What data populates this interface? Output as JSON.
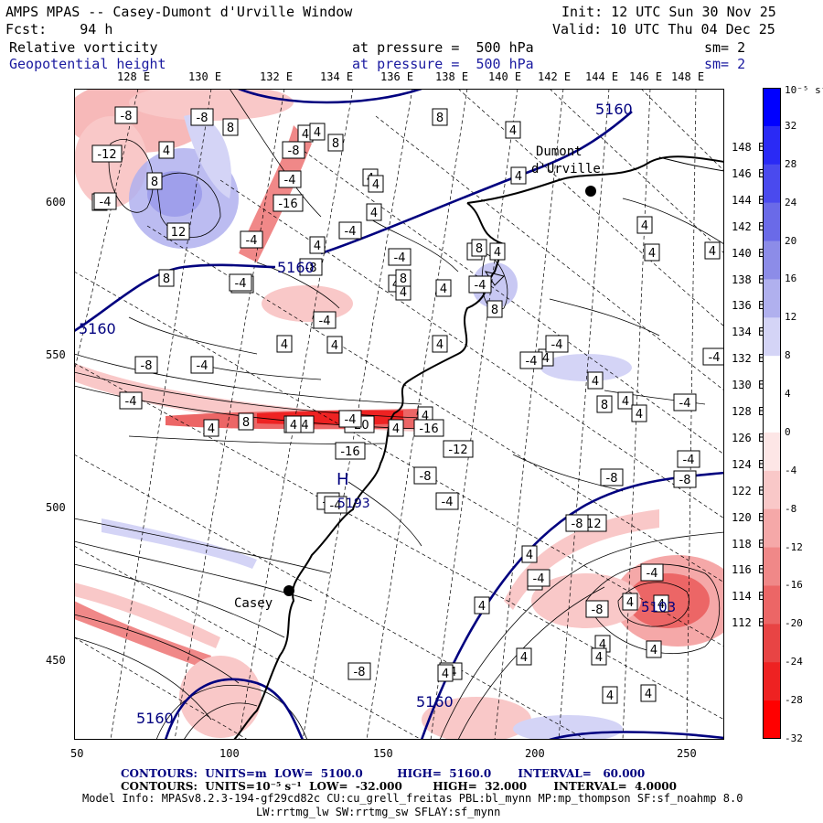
{
  "header": {
    "title": "AMPS MPAS -- Casey-Dumont d'Urville Window",
    "fcst": "Fcst:    94 h",
    "init": "Init: 12 UTC Sun 30 Nov 25",
    "valid": "Valid: 10 UTC Thu 04 Dec 25",
    "field1_name": "Relative vorticity",
    "field1_level": "at pressure =  500 hPa",
    "field1_sm": "sm= 2",
    "field2_name": "Geopotential height",
    "field2_level": "at pressure =  500 hPa",
    "field2_sm": "sm= 2"
  },
  "axes": {
    "top_lon_labels": [
      "128 E",
      "130 E",
      "132 E",
      "134 E",
      "136 E",
      "138 E",
      "140 E",
      "142 E",
      "144 E",
      "146 E",
      "148 E"
    ],
    "right_lat_labels": [
      "148 E",
      "146 E",
      "144 E",
      "142 E",
      "140 E",
      "138 E",
      "136 E",
      "134 E",
      "132 E",
      "130 E",
      "128 E",
      "126 E",
      "124 E",
      "122 E",
      "120 E",
      "118 E",
      "116 E",
      "114 E",
      "112 E"
    ],
    "left_y_labels": [
      "600",
      "550",
      "500",
      "450"
    ],
    "bottom_x_labels": [
      "50",
      "100",
      "150",
      "200",
      "250"
    ]
  },
  "colorbar": {
    "unit": "10⁻⁵ s⁻¹",
    "labels": [
      "32",
      "28",
      "24",
      "20",
      "16",
      "12",
      "8",
      "4",
      "0",
      "-4",
      "-8",
      "-12",
      "-16",
      "-20",
      "-24",
      "-28",
      "-32"
    ],
    "colors": [
      "#0000ff",
      "#2a2af5",
      "#4a4aee",
      "#6a6ae8",
      "#8c8ce8",
      "#b0b0ee",
      "#d4d4f6",
      "#ffffff",
      "#ffffff",
      "#fde6e6",
      "#f9c8c8",
      "#f5a8a8",
      "#f08888",
      "#ec6666",
      "#e84444",
      "#ee2222",
      "#ff0000"
    ]
  },
  "places": {
    "dumont": "Dumont d'Urville",
    "casey": "Casey"
  },
  "contours": {
    "height_labels": [
      "5160",
      "5160",
      "5160",
      "5160",
      "5160",
      "5160"
    ],
    "low_value": "5103",
    "high_marker": "H",
    "high_value": "5193",
    "vort_labels": [
      "-8",
      "-8",
      "8",
      "-12",
      "4",
      "8",
      "4",
      "-4",
      "-8",
      "4",
      "-4",
      "-16",
      "4",
      "8",
      "12",
      "-4",
      "8",
      "-4",
      "4",
      "4",
      "-4",
      "-8",
      "4",
      "4",
      "8",
      "-4",
      "4",
      "4",
      "4",
      "8",
      "-4",
      "-4",
      "8",
      "4",
      "-4",
      "-4",
      "-8",
      "-4",
      "-24",
      "-20",
      "-4",
      "4",
      "8",
      "4",
      "4",
      "4",
      "4",
      "4",
      "4",
      "4",
      "8",
      "4",
      "4",
      "4",
      "4",
      "4",
      "4",
      "-4",
      "-4",
      "4",
      "8",
      "4",
      "-4",
      "-4",
      "4",
      "-8",
      "-8",
      "-4",
      "-16",
      "-16",
      "-8",
      "-4",
      "-4",
      "-8",
      "-12",
      "-12",
      "-8",
      "4",
      "4",
      "4",
      "-4",
      "-8",
      "-4",
      "4",
      "4",
      "4",
      "4",
      "4",
      "-4",
      "-8",
      "4",
      "4",
      "4",
      "4"
    ]
  },
  "footer": {
    "line1_label": "CONTOURS:  UNITS=m  LOW=  5100.0         HIGH=  5160.0       INTERVAL=   60.000",
    "line2_label": "CONTOURS:  UNITS=10⁻⁵ s⁻¹  LOW=  -32.000        HIGH=  32.000       INTERVAL=  4.0000",
    "model_info": "Model Info: MPASv8.2.3-194-gf29cd82c CU:cu_grell_freitas PBL:bl_mynn MP:mp_thompson SF:sf_noahmp 8.0",
    "model_info2": "LW:rrtmg_lw SW:rrtmg_sw SFLAY:sf_mynn"
  }
}
